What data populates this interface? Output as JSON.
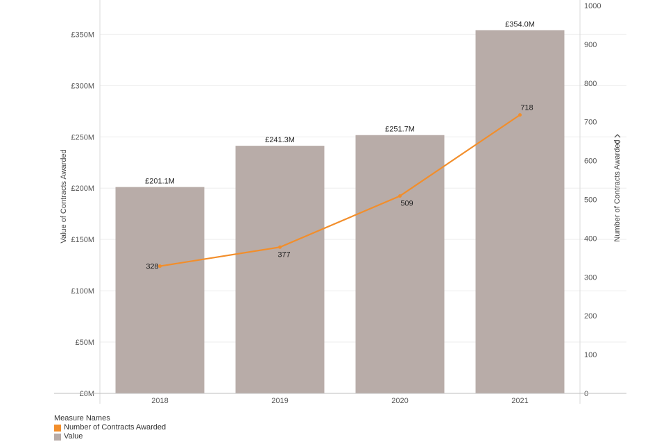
{
  "chart_data": {
    "type": "bar+line",
    "categories": [
      "2018",
      "2019",
      "2020",
      "2021"
    ],
    "series": [
      {
        "name": "Value",
        "type": "bar",
        "axis": "left",
        "values": [
          201.1,
          241.3,
          251.7,
          354.0
        ],
        "labels": [
          "£201.1M",
          "£241.3M",
          "£251.7M",
          "£354.0M"
        ],
        "color": "#b8aca8"
      },
      {
        "name": "Number of Contracts Awarded",
        "type": "line",
        "axis": "right",
        "values": [
          328,
          377,
          509,
          718
        ],
        "labels": [
          "328",
          "377",
          "509",
          "718"
        ],
        "color": "#f28e2b"
      }
    ],
    "y_left": {
      "label": "Value of Contracts Awarded",
      "ylim": [
        0,
        380
      ],
      "ticks": [
        0,
        50,
        100,
        150,
        200,
        250,
        300,
        350
      ],
      "tick_labels": [
        "£0M",
        "£50M",
        "£100M",
        "£150M",
        "£200M",
        "£250M",
        "£300M",
        "£350M"
      ]
    },
    "y_right": {
      "label": "Number of Contracts Awarded",
      "ylim": [
        0,
        1000
      ],
      "ticks": [
        0,
        100,
        200,
        300,
        400,
        500,
        600,
        700,
        800,
        900,
        1000
      ],
      "tick_labels": [
        "0",
        "100",
        "200",
        "300",
        "400",
        "500",
        "600",
        "700",
        "800",
        "900",
        "1000"
      ]
    },
    "grid": true,
    "legend": {
      "title": "Measure Names",
      "placement": "bottom-left",
      "items": [
        {
          "name": "Number of Contracts Awarded",
          "color": "#f28e2b"
        },
        {
          "name": "Value",
          "color": "#b8aca8"
        }
      ]
    }
  }
}
